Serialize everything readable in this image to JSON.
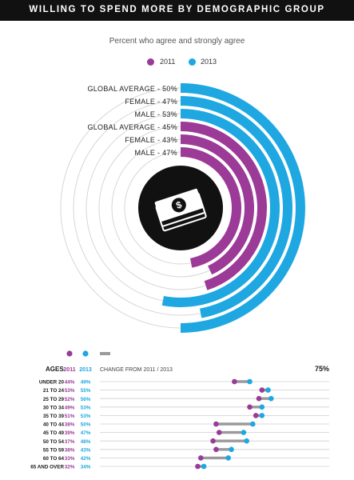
{
  "header": {
    "title": "WILLING TO SPEND MORE BY DEMOGRAPHIC GROUP"
  },
  "subtitle": "Percent who agree and strongly agree",
  "legend": {
    "year_2011": "2011",
    "year_2013": "2013"
  },
  "colors": {
    "y2011": "#9b3a97",
    "y2013": "#1ea7e1",
    "change": "#9a9a9a",
    "track": "#e2e2e2",
    "center": "#111111"
  },
  "icon": "money-stack-icon",
  "chart_data": [
    {
      "type": "radial-bar",
      "ring_labels": [
        "GLOBAL AVERAGE - 50%",
        "FEMALE - 47%",
        "MALE - 53%",
        "GLOBAL AVERAGE - 45%",
        "FEMALE - 43%",
        "MALE - 47%"
      ],
      "series": [
        {
          "name": "2013",
          "categories": [
            "GLOBAL AVERAGE",
            "FEMALE",
            "MALE"
          ],
          "values": [
            50,
            47,
            53
          ]
        },
        {
          "name": "2011",
          "categories": [
            "GLOBAL AVERAGE",
            "FEMALE",
            "MALE"
          ],
          "values": [
            45,
            43,
            47
          ]
        }
      ]
    },
    {
      "type": "dumbbell",
      "header": {
        "ages": "AGES",
        "col_2011": "2011",
        "col_2013": "2013",
        "change": "CHANGE FROM 2011 / 2013",
        "max_label": "75%"
      },
      "categories": [
        "UNDER 20",
        "21 TO 24",
        "25 TO 29",
        "30 TO 34",
        "35 TO 39",
        "40 TO 44",
        "45 TO 49",
        "50 TO 54",
        "55 TO 59",
        "60 TO 64",
        "65 AND OVER"
      ],
      "labels_2011": [
        "44%",
        "53%",
        "52%",
        "49%",
        "51%",
        "38%",
        "39%",
        "37%",
        "38%",
        "33%",
        "32%"
      ],
      "labels_2013": [
        "49%",
        "55%",
        "56%",
        "53%",
        "53%",
        "50%",
        "47%",
        "48%",
        "43%",
        "42%",
        "34%"
      ],
      "series": [
        {
          "name": "2011",
          "values": [
            44,
            53,
            52,
            49,
            51,
            38,
            39,
            37,
            38,
            33,
            32
          ]
        },
        {
          "name": "2013",
          "values": [
            49,
            55,
            56,
            53,
            53,
            50,
            47,
            48,
            43,
            42,
            34
          ]
        }
      ],
      "xlim": [
        0,
        75
      ]
    }
  ]
}
